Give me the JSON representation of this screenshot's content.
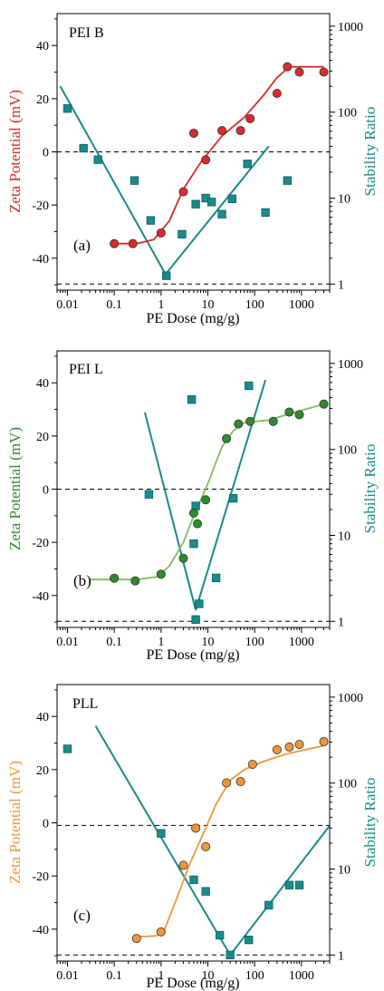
{
  "colors": {
    "teal": "#1a8a8a",
    "red": "#d92b2b",
    "green": "#2e8b2e",
    "green_line": "#7fbf5a",
    "orange": "#f0963a"
  },
  "chart_data": [
    {
      "type": "scatter",
      "title": "PEI B",
      "panel_label": "(a)",
      "xlabel": "PE Dose (mg/g)",
      "ylabel_left": "Zeta Potential (mV)",
      "ylabel_right": "Stability Ratio",
      "x_scale": "log",
      "xlim": [
        0.006,
        4000
      ],
      "ylim_left": [
        -52,
        52
      ],
      "ylim_right_log": [
        0.85,
        1400
      ],
      "x_ticks": [
        {
          "v": 0.01,
          "label": "0.01"
        },
        {
          "v": 0.1,
          "label": "0.1"
        },
        {
          "v": 1,
          "label": "1"
        },
        {
          "v": 10,
          "label": "10"
        },
        {
          "v": 100,
          "label": "100"
        },
        {
          "v": 1000,
          "label": "1000"
        }
      ],
      "y_left_ticks": [
        {
          "v": 40,
          "label": "40"
        },
        {
          "v": 20,
          "label": "20"
        },
        {
          "v": 0,
          "label": "0"
        },
        {
          "v": -20,
          "label": "-20"
        },
        {
          "v": -40,
          "label": "-40"
        }
      ],
      "y_right_ticks": [
        {
          "v": 1,
          "label": "1"
        },
        {
          "v": 10,
          "label": "10"
        },
        {
          "v": 100,
          "label": "100"
        },
        {
          "v": 1000,
          "label": "1000"
        }
      ],
      "left_color": "red",
      "dashed_zero": 0,
      "dashed_ratio_one": 1,
      "zeta_points": {
        "color": "red",
        "points": [
          [
            0.1,
            -34.5
          ],
          [
            0.25,
            -34.5
          ],
          [
            1,
            -30.5
          ],
          [
            3,
            -15
          ],
          [
            5,
            7
          ],
          [
            9,
            -3
          ],
          [
            20,
            8
          ],
          [
            50,
            8
          ],
          [
            80,
            12.5
          ],
          [
            300,
            22
          ],
          [
            500,
            32
          ],
          [
            900,
            30
          ],
          [
            3000,
            30
          ]
        ]
      },
      "zeta_fit": {
        "color": "red",
        "points": [
          [
            0.08,
            -34.5
          ],
          [
            0.3,
            -34.5
          ],
          [
            0.7,
            -33
          ],
          [
            1.5,
            -26
          ],
          [
            3,
            -14
          ],
          [
            7,
            -4
          ],
          [
            20,
            6
          ],
          [
            60,
            13
          ],
          [
            150,
            21
          ],
          [
            300,
            28
          ],
          [
            550,
            32
          ],
          [
            3000,
            32
          ]
        ]
      },
      "ratio_points": {
        "color": "teal",
        "points": [
          [
            0.01,
            110
          ],
          [
            0.022,
            38
          ],
          [
            0.045,
            28
          ],
          [
            0.27,
            16
          ],
          [
            0.6,
            5.5
          ],
          [
            1.3,
            1.25
          ],
          [
            2.8,
            3.8
          ],
          [
            5.5,
            8.5
          ],
          [
            9,
            10
          ],
          [
            12,
            9
          ],
          [
            20,
            6.5
          ],
          [
            33,
            9.8
          ],
          [
            170,
            6.8
          ],
          [
            70,
            25
          ],
          [
            500,
            16
          ]
        ]
      },
      "ratio_fit": [
        {
          "color": "teal",
          "points": [
            [
              0.007,
              200
            ],
            [
              1.25,
              1.3
            ]
          ]
        },
        {
          "color": "teal",
          "points": [
            [
              1.25,
              1.3
            ],
            [
              200,
              40
            ]
          ]
        }
      ]
    },
    {
      "type": "scatter",
      "title": "PEI L",
      "panel_label": "(b)",
      "xlabel": "PE Dose (mg/g)",
      "ylabel_left": "Zeta Potential (mV)",
      "ylabel_right": "Stability Ratio",
      "x_scale": "log",
      "xlim": [
        0.006,
        4000
      ],
      "ylim_left": [
        -52,
        52
      ],
      "ylim_right_log": [
        0.85,
        1400
      ],
      "x_ticks": [
        {
          "v": 0.01,
          "label": "0.01"
        },
        {
          "v": 0.1,
          "label": "0.1"
        },
        {
          "v": 1,
          "label": "1"
        },
        {
          "v": 10,
          "label": "10"
        },
        {
          "v": 100,
          "label": "100"
        },
        {
          "v": 1000,
          "label": "1000"
        }
      ],
      "y_left_ticks": [
        {
          "v": 40,
          "label": "40"
        },
        {
          "v": 20,
          "label": "20"
        },
        {
          "v": 0,
          "label": "0"
        },
        {
          "v": -20,
          "label": "-20"
        },
        {
          "v": -40,
          "label": "-40"
        }
      ],
      "y_right_ticks": [
        {
          "v": 1,
          "label": "1"
        },
        {
          "v": 10,
          "label": "10"
        },
        {
          "v": 100,
          "label": "100"
        },
        {
          "v": 1000,
          "label": "1000"
        }
      ],
      "left_color": "green",
      "dashed_zero": 0,
      "dashed_ratio_one": 1,
      "zeta_points": {
        "color": "green",
        "points": [
          [
            0.1,
            -33.5
          ],
          [
            0.28,
            -34.5
          ],
          [
            1,
            -32
          ],
          [
            3,
            -26
          ],
          [
            5,
            -9
          ],
          [
            6,
            -13
          ],
          [
            9,
            -4
          ],
          [
            25,
            19
          ],
          [
            45,
            24.5
          ],
          [
            80,
            25.5
          ],
          [
            250,
            25.5
          ],
          [
            550,
            29
          ],
          [
            900,
            28
          ],
          [
            3000,
            32
          ]
        ]
      },
      "zeta_fit": {
        "color": "green_line",
        "points": [
          [
            0.03,
            -34
          ],
          [
            0.3,
            -34
          ],
          [
            0.8,
            -33
          ],
          [
            1.5,
            -29
          ],
          [
            3,
            -20
          ],
          [
            5,
            -10
          ],
          [
            10,
            2
          ],
          [
            20,
            16
          ],
          [
            35,
            22
          ],
          [
            60,
            25
          ],
          [
            200,
            26
          ],
          [
            600,
            28.5
          ],
          [
            3000,
            32
          ]
        ]
      },
      "ratio_points": {
        "color": "teal",
        "points": [
          [
            0.55,
            30
          ],
          [
            4.5,
            380
          ],
          [
            5,
            8
          ],
          [
            5.5,
            22
          ],
          [
            6.5,
            1.6
          ],
          [
            5.5,
            1.05
          ],
          [
            15,
            3.2
          ],
          [
            35,
            27
          ],
          [
            75,
            550
          ]
        ]
      },
      "ratio_fit": [
        {
          "color": "teal",
          "points": [
            [
              0.45,
              270
            ],
            [
              5.5,
              1.35
            ]
          ]
        },
        {
          "color": "teal",
          "points": [
            [
              5.5,
              1.35
            ],
            [
              170,
              640
            ]
          ]
        }
      ]
    },
    {
      "type": "scatter",
      "title": "PLL",
      "panel_label": "(c)",
      "xlabel": "PE Dose (mg/g)",
      "ylabel_left": "Zeta Potential (mV)",
      "ylabel_right": "Stability Ratio",
      "x_scale": "log",
      "xlim": [
        0.006,
        4000
      ],
      "ylim_left": [
        -52,
        52
      ],
      "ylim_right_log": [
        0.85,
        1400
      ],
      "x_ticks": [
        {
          "v": 0.01,
          "label": "0.01"
        },
        {
          "v": 0.1,
          "label": "0.1"
        },
        {
          "v": 1,
          "label": "1"
        },
        {
          "v": 10,
          "label": "10"
        },
        {
          "v": 100,
          "label": "100"
        },
        {
          "v": 1000,
          "label": "1000"
        }
      ],
      "y_left_ticks": [
        {
          "v": 40,
          "label": "40"
        },
        {
          "v": 20,
          "label": "20"
        },
        {
          "v": 0,
          "label": "0"
        },
        {
          "v": -20,
          "label": "-20"
        },
        {
          "v": -40,
          "label": "-40"
        }
      ],
      "y_right_ticks": [
        {
          "v": 1,
          "label": "1"
        },
        {
          "v": 10,
          "label": "10"
        },
        {
          "v": 100,
          "label": "100"
        },
        {
          "v": 1000,
          "label": "1000"
        }
      ],
      "left_color": "orange",
      "dashed_zero": -1,
      "dashed_ratio_one": 1,
      "zeta_points": {
        "color": "orange",
        "points": [
          [
            0.3,
            -43.5
          ],
          [
            1,
            -41
          ],
          [
            3,
            -16
          ],
          [
            5.5,
            -2
          ],
          [
            9,
            -9
          ],
          [
            25,
            15
          ],
          [
            50,
            15.5
          ],
          [
            90,
            22
          ],
          [
            300,
            27.5
          ],
          [
            550,
            28.5
          ],
          [
            900,
            29.5
          ],
          [
            3000,
            30.5
          ]
        ]
      },
      "zeta_fit": {
        "color": "orange",
        "points": [
          [
            0.25,
            -43
          ],
          [
            0.8,
            -42.5
          ],
          [
            1.2,
            -40
          ],
          [
            2,
            -30
          ],
          [
            4,
            -16
          ],
          [
            8,
            -4
          ],
          [
            15,
            7
          ],
          [
            30,
            16
          ],
          [
            60,
            20
          ],
          [
            150,
            23
          ],
          [
            500,
            26
          ],
          [
            3000,
            29
          ]
        ]
      },
      "ratio_points": {
        "color": "teal",
        "points": [
          [
            0.01,
            250
          ],
          [
            1,
            26
          ],
          [
            5,
            7.5
          ],
          [
            9,
            5.5
          ],
          [
            18,
            1.7
          ],
          [
            30,
            1.0
          ],
          [
            75,
            1.5
          ],
          [
            200,
            3.8
          ],
          [
            550,
            6.5
          ],
          [
            900,
            6.5
          ]
        ]
      },
      "ratio_fit": [
        {
          "color": "teal",
          "points": [
            [
              0.04,
              460
            ],
            [
              30,
              1.0
            ]
          ]
        },
        {
          "color": "teal",
          "points": [
            [
              30,
              1.0
            ],
            [
              4000,
              32
            ]
          ]
        }
      ]
    }
  ]
}
